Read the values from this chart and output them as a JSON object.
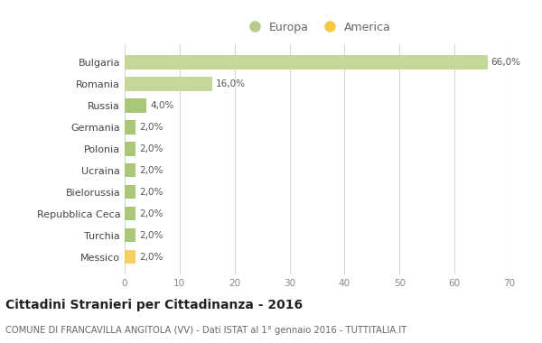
{
  "categories": [
    "Bulgaria",
    "Romania",
    "Russia",
    "Germania",
    "Polonia",
    "Ucraina",
    "Bielorussia",
    "Repubblica Ceca",
    "Turchia",
    "Messico"
  ],
  "values": [
    66.0,
    16.0,
    4.0,
    2.0,
    2.0,
    2.0,
    2.0,
    2.0,
    2.0,
    2.0
  ],
  "colors": [
    "#c5d89a",
    "#c5d89a",
    "#a8c878",
    "#a8c878",
    "#a8c878",
    "#a8c878",
    "#a8c878",
    "#a8c878",
    "#a8c878",
    "#f5d060"
  ],
  "legend_europa_color": "#b5cc8e",
  "legend_america_color": "#f5c842",
  "labels": [
    "66,0%",
    "16,0%",
    "4,0%",
    "2,0%",
    "2,0%",
    "2,0%",
    "2,0%",
    "2,0%",
    "2,0%",
    "2,0%"
  ],
  "xlim": [
    0,
    70
  ],
  "xticks": [
    0,
    10,
    20,
    30,
    40,
    50,
    60,
    70
  ],
  "title": "Cittadini Stranieri per Cittadinanza - 2016",
  "subtitle": "COMUNE DI FRANCAVILLA ANGITOLA (VV) - Dati ISTAT al 1° gennaio 2016 - TUTTITALIA.IT",
  "legend_labels": [
    "Europa",
    "America"
  ],
  "background_color": "#ffffff",
  "grid_color": "#d8d8d8"
}
